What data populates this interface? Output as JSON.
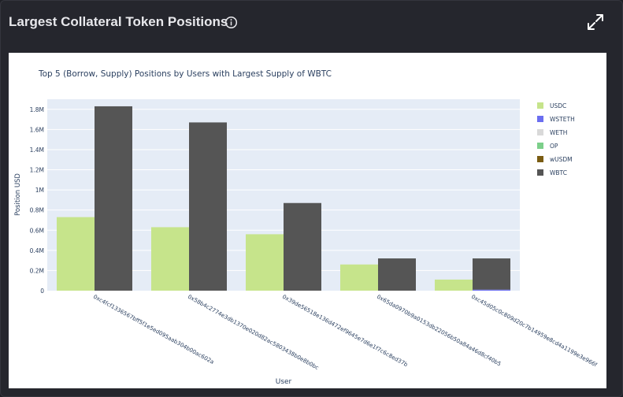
{
  "panel": {
    "title": "Largest Collateral Token Positions",
    "info_icon": "info-circle-icon",
    "expand_icon": "expand-arrows-icon"
  },
  "colors": {
    "background": "#25262d",
    "plot_bg": "#e5ecf6",
    "USDC": "#c6e48b",
    "WSTETH": "#6b6ef0",
    "WETH": "#d9d9d9",
    "OP": "#7ccf8a",
    "wUSDM": "#7a5c12",
    "WBTC": "#555555"
  },
  "chart_data": {
    "type": "bar",
    "title": "Top 5 (Borrow, Supply) Positions by Users with Largest Supply of WBTC",
    "xlabel": "User",
    "ylabel": "Position USD",
    "ylim": [
      0,
      1.9
    ],
    "yticks": [
      "0",
      "0.2M",
      "0.4M",
      "0.6M",
      "0.8M",
      "1M",
      "1.2M",
      "1.4M",
      "1.6M",
      "1.8M"
    ],
    "categories": [
      "0xc4fcf1336567bff5f1e5ed095aab304b00ac602a",
      "0x58b4c2774e3db1370e020d82ac5803438b0e8b0bc",
      "0x39de56518e136d472ef9645e7d6e1f7c6c8ed37b",
      "0x65da0970b9a0153db22056b50a84a46d8cf40b5",
      "0xc45d05c0c809d20c7b14959e8cd4a1199e3e966f"
    ],
    "legend_position": "right",
    "grid": true,
    "legend": [
      "USDC",
      "WSTETH",
      "WETH",
      "OP",
      "wUSDM",
      "WBTC"
    ],
    "bars": [
      {
        "category_index": 0,
        "slot": 0,
        "segments": [
          {
            "series": "USDC",
            "value": 0.73
          }
        ]
      },
      {
        "category_index": 0,
        "slot": 1,
        "segments": [
          {
            "series": "WBTC",
            "value": 1.83
          }
        ]
      },
      {
        "category_index": 1,
        "slot": 0,
        "segments": [
          {
            "series": "USDC",
            "value": 0.63
          }
        ]
      },
      {
        "category_index": 1,
        "slot": 1,
        "segments": [
          {
            "series": "WBTC",
            "value": 1.67
          }
        ]
      },
      {
        "category_index": 2,
        "slot": 0,
        "segments": [
          {
            "series": "USDC",
            "value": 0.56
          }
        ]
      },
      {
        "category_index": 2,
        "slot": 1,
        "segments": [
          {
            "series": "WBTC",
            "value": 0.87
          }
        ]
      },
      {
        "category_index": 3,
        "slot": 0,
        "segments": [
          {
            "series": "USDC",
            "value": 0.26
          }
        ]
      },
      {
        "category_index": 3,
        "slot": 1,
        "segments": [
          {
            "series": "WBTC",
            "value": 0.32
          }
        ]
      },
      {
        "category_index": 4,
        "slot": 0,
        "segments": [
          {
            "series": "USDC",
            "value": 0.11
          }
        ]
      },
      {
        "category_index": 4,
        "slot": 1,
        "segments": [
          {
            "series": "WSTETH",
            "value": 0.01
          },
          {
            "series": "WBTC",
            "value": 0.31
          }
        ]
      }
    ]
  }
}
